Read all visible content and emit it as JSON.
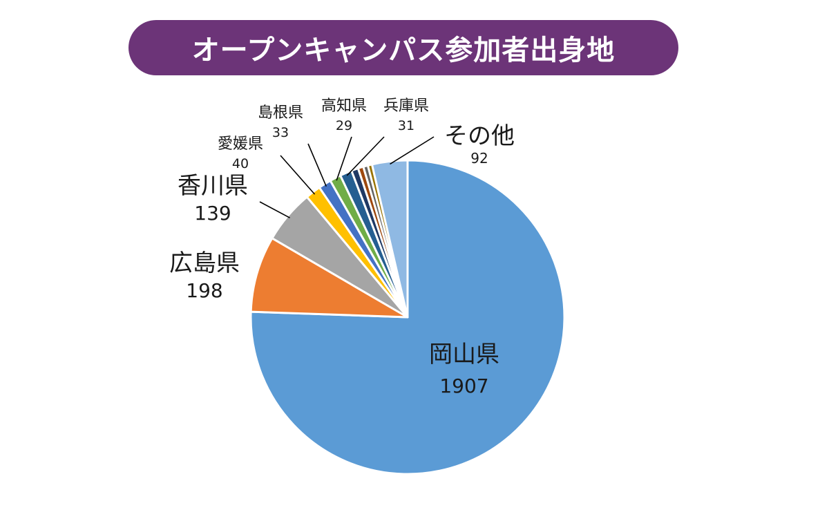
{
  "colors": {
    "banner": "#6c3478",
    "banner_text": "#ffffff",
    "leader": "#000000",
    "slice_edge": "#ffffff"
  },
  "chart_data": {
    "type": "pie",
    "title": "オープンキャンパス参加者出身地",
    "start_angle_deg": 0,
    "direction": "clockwise",
    "categories": [
      "岡山県",
      "広島県",
      "香川県",
      "愛媛県",
      "島根県",
      "高知県",
      "兵庫県",
      "",
      "",
      "",
      "",
      "その他"
    ],
    "values": [
      1907,
      198,
      139,
      40,
      33,
      29,
      31,
      18,
      14,
      12,
      11,
      92
    ],
    "colors": [
      "#5b9bd5",
      "#ed7d31",
      "#a5a5a5",
      "#ffc000",
      "#4472c4",
      "#70ad47",
      "#255e91",
      "#1f3864",
      "#9e480e",
      "#636363",
      "#997300",
      "#8fb9e3"
    ],
    "labels": [
      {
        "slice": 0,
        "name": "岡山県",
        "value": "1907"
      },
      {
        "slice": 1,
        "name": "広島県",
        "value": "198"
      },
      {
        "slice": 2,
        "name": "香川県",
        "value": "139"
      },
      {
        "slice": 3,
        "name": "愛媛県",
        "value": "40"
      },
      {
        "slice": 4,
        "name": "島根県",
        "value": "33"
      },
      {
        "slice": 5,
        "name": "高知県",
        "value": "29"
      },
      {
        "slice": 6,
        "name": "兵庫県",
        "value": "31"
      },
      {
        "slice": 11,
        "name": "その他",
        "value": "92"
      }
    ]
  }
}
